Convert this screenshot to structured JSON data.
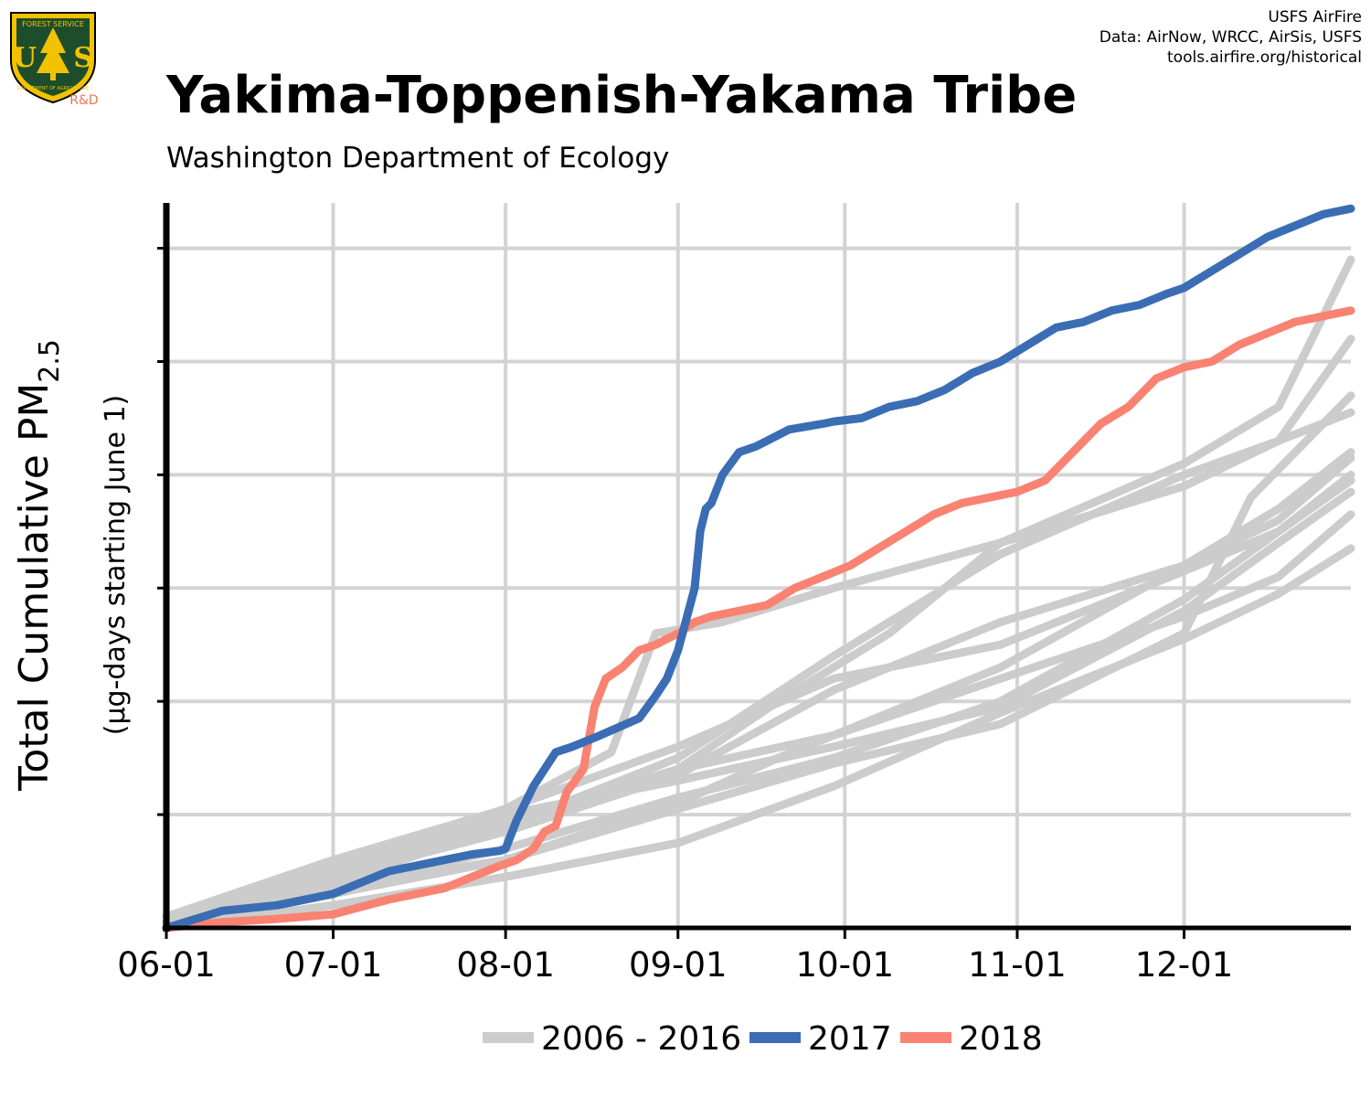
{
  "header": {
    "title": "Yakima-Toppenish-Yakama Tribe",
    "subtitle": "Washington Department of Ecology",
    "source_lines": [
      "USFS AirFire",
      "Data: AirNow, WRCC, AirSis, USFS",
      "tools.airfire.org/historical"
    ]
  },
  "logo": {
    "top_text": "FOREST SERVICE",
    "letters": "U S",
    "bottom_text": "DEPARTMENT OF AGRICULTURE",
    "rd": "R&D"
  },
  "colors": {
    "historical": "#cccccc",
    "y2017": "#3b6db4",
    "y2018": "#f98272",
    "grid": "#d3d3d3",
    "logo_green": "#1e4d2b",
    "logo_gold": "#f2c200",
    "rd": "#e8735a"
  },
  "chart_data": {
    "type": "line",
    "title": "Yakima-Toppenish-Yakama Tribe",
    "subtitle": "Washington Department of Ecology",
    "ylabel": "Total Cumulative PM2.5",
    "ylabel_main": "Total Cumulative PM",
    "ylabel_sub": "2.5",
    "ylabel_note": "(µg-days starting June 1)",
    "x_tick_labels": [
      "06-01",
      "07-01",
      "08-01",
      "09-01",
      "10-01",
      "11-01",
      "12-01"
    ],
    "x_tick_days": [
      0,
      30,
      61,
      92,
      122,
      153,
      183
    ],
    "xlim": [
      0,
      213
    ],
    "ylim": [
      0,
      6.4
    ],
    "y_gridlines": [
      1,
      2,
      3,
      4,
      5,
      6
    ],
    "y_tick_labels_shown": false,
    "grid": true,
    "legend_position": "bottom",
    "legend": [
      {
        "label": "2006 - 2016",
        "color_key": "historical"
      },
      {
        "label": "2017",
        "color_key": "y2017"
      },
      {
        "label": "2018",
        "color_key": "y2018"
      }
    ],
    "series": [
      {
        "name": "2006 - 2016",
        "group": "historical",
        "x": [
          0,
          30,
          61,
          80,
          88,
          100,
          120,
          150,
          183,
          200,
          213
        ],
        "y": [
          0.1,
          0.55,
          1.05,
          1.55,
          2.6,
          2.7,
          3.0,
          3.4,
          4.1,
          4.6,
          5.9
        ]
      },
      {
        "name": "2006 - 2016",
        "group": "historical",
        "x": [
          0,
          30,
          61,
          92,
          120,
          150,
          183,
          200,
          213
        ],
        "y": [
          0.1,
          0.6,
          1.05,
          1.6,
          2.2,
          2.5,
          3.15,
          3.5,
          3.95
        ]
      },
      {
        "name": "2006 - 2016",
        "group": "historical",
        "x": [
          0,
          30,
          61,
          92,
          120,
          150,
          183,
          200,
          213
        ],
        "y": [
          0.05,
          0.5,
          0.95,
          1.4,
          1.7,
          2.2,
          2.75,
          3.1,
          3.65
        ]
      },
      {
        "name": "2006 - 2016",
        "group": "historical",
        "x": [
          0,
          30,
          61,
          92,
          110,
          130,
          150,
          183,
          200,
          213
        ],
        "y": [
          0.05,
          0.4,
          0.9,
          1.4,
          2.0,
          2.6,
          3.4,
          3.9,
          4.3,
          5.2
        ]
      },
      {
        "name": "2006 - 2016",
        "group": "historical",
        "x": [
          0,
          30,
          61,
          92,
          110,
          130,
          150,
          183,
          200,
          213
        ],
        "y": [
          0.05,
          0.3,
          0.6,
          1.1,
          1.5,
          1.9,
          2.3,
          3.2,
          3.7,
          4.2
        ]
      },
      {
        "name": "2006 - 2016",
        "group": "historical",
        "x": [
          0,
          30,
          61,
          92,
          120,
          150,
          183,
          200,
          213
        ],
        "y": [
          0.0,
          0.35,
          0.7,
          1.15,
          1.5,
          2.0,
          2.9,
          3.5,
          4.0
        ]
      },
      {
        "name": "2006 - 2016",
        "group": "historical",
        "x": [
          0,
          30,
          61,
          92,
          120,
          150,
          183,
          200,
          213
        ],
        "y": [
          0.05,
          0.45,
          0.85,
          1.35,
          2.1,
          2.7,
          3.2,
          3.6,
          4.15
        ]
      },
      {
        "name": "2006 - 2016",
        "group": "historical",
        "x": [
          0,
          30,
          61,
          92,
          120,
          150,
          183,
          200,
          213
        ],
        "y": [
          0.05,
          0.4,
          0.9,
          1.5,
          2.4,
          3.3,
          4.0,
          4.3,
          4.55
        ]
      },
      {
        "name": "2006 - 2016",
        "group": "historical",
        "x": [
          0,
          30,
          61,
          92,
          120,
          150,
          183,
          195,
          213
        ],
        "y": [
          0.05,
          0.35,
          0.6,
          1.05,
          1.45,
          1.8,
          2.6,
          3.8,
          4.7
        ]
      },
      {
        "name": "2006 - 2016",
        "group": "historical",
        "x": [
          0,
          30,
          61,
          92,
          120,
          150,
          183,
          200,
          213
        ],
        "y": [
          0.05,
          0.5,
          1.0,
          1.3,
          1.6,
          1.95,
          2.8,
          3.4,
          3.85
        ]
      },
      {
        "name": "2006 - 2016",
        "group": "historical",
        "x": [
          0,
          30,
          61,
          92,
          120,
          150,
          183,
          200,
          213
        ],
        "y": [
          0.0,
          0.2,
          0.45,
          0.75,
          1.25,
          1.9,
          2.55,
          2.95,
          3.35
        ]
      },
      {
        "name": "2017",
        "group": "y2017",
        "x": [
          0,
          10,
          20,
          30,
          40,
          50,
          55,
          60,
          61,
          63,
          66,
          70,
          73,
          78,
          85,
          88,
          90,
          92,
          95,
          96,
          97,
          98,
          100,
          103,
          106,
          108,
          112,
          118,
          120,
          125,
          130,
          135,
          140,
          145,
          150,
          155,
          160,
          165,
          170,
          175,
          180,
          183,
          188,
          193,
          198,
          203,
          208,
          213
        ],
        "y": [
          0.0,
          0.15,
          0.2,
          0.3,
          0.5,
          0.6,
          0.65,
          0.68,
          0.7,
          0.95,
          1.25,
          1.55,
          1.6,
          1.7,
          1.85,
          2.05,
          2.2,
          2.45,
          3.0,
          3.5,
          3.7,
          3.75,
          4.0,
          4.2,
          4.25,
          4.3,
          4.4,
          4.45,
          4.47,
          4.5,
          4.6,
          4.65,
          4.75,
          4.9,
          5.0,
          5.15,
          5.3,
          5.35,
          5.45,
          5.5,
          5.6,
          5.65,
          5.8,
          5.95,
          6.1,
          6.2,
          6.3,
          6.35
        ]
      },
      {
        "name": "2018",
        "group": "y2018",
        "x": [
          0,
          10,
          20,
          30,
          40,
          50,
          55,
          60,
          63,
          66,
          68,
          70,
          72,
          75,
          77,
          79,
          82,
          85,
          88,
          92,
          95,
          98,
          103,
          108,
          113,
          118,
          123,
          128,
          133,
          138,
          143,
          148,
          153,
          158,
          163,
          168,
          173,
          178,
          183,
          188,
          193,
          198,
          203,
          208,
          213
        ],
        "y": [
          0.0,
          0.05,
          0.08,
          0.12,
          0.25,
          0.35,
          0.45,
          0.55,
          0.6,
          0.7,
          0.85,
          0.9,
          1.2,
          1.4,
          1.95,
          2.2,
          2.3,
          2.45,
          2.5,
          2.6,
          2.7,
          2.75,
          2.8,
          2.85,
          3.0,
          3.1,
          3.2,
          3.35,
          3.5,
          3.65,
          3.75,
          3.8,
          3.85,
          3.95,
          4.2,
          4.45,
          4.6,
          4.85,
          4.95,
          5.0,
          5.15,
          5.25,
          5.35,
          5.4,
          5.45
        ]
      }
    ]
  }
}
